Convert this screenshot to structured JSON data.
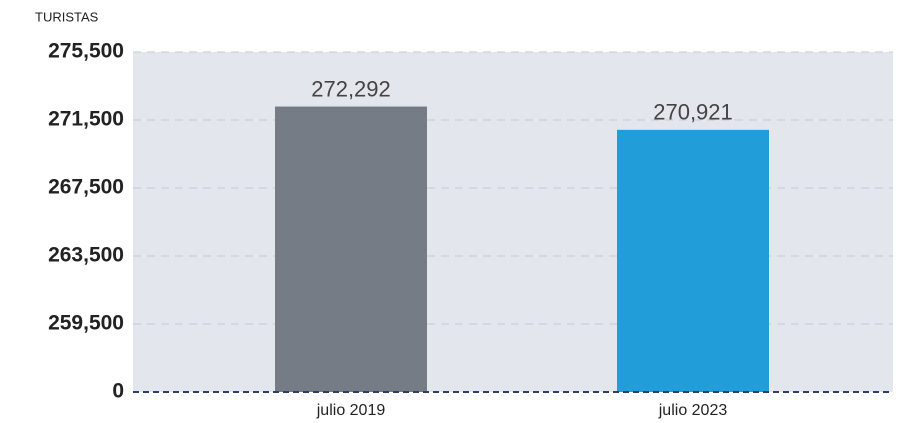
{
  "chart_data": {
    "type": "bar",
    "y_axis_label": "TURISTAS",
    "categories": [
      "julio 2019",
      "julio 2023"
    ],
    "values": [
      272292,
      270921
    ],
    "value_labels": [
      "272,292",
      "270,921"
    ],
    "colors": [
      "#767c86",
      "#219ed9"
    ],
    "ylim": [
      0,
      275500
    ],
    "yticks": [
      {
        "value": 0,
        "label": "0"
      },
      {
        "value": 259500,
        "label": "259,500"
      },
      {
        "value": 263500,
        "label": "263,500"
      },
      {
        "value": 267500,
        "label": "267,500"
      },
      {
        "value": 271500,
        "label": "271,500"
      },
      {
        "value": 275500,
        "label": "275,500"
      }
    ],
    "grid": true
  }
}
